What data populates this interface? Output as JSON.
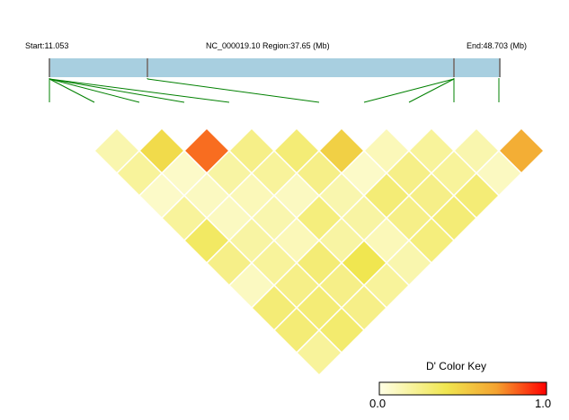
{
  "header": {
    "start_label": "Start:11.053",
    "region_label": "NC_000019.10 Region:37.65 (Mb)",
    "end_label": "End:48.703 (Mb)"
  },
  "region": {
    "start_mb": 11.053,
    "end_mb": 48.703
  },
  "colors": {
    "track_fill": "#a8cfe0",
    "marker_line": "#008000",
    "cell_border": "#ffffff",
    "scale": [
      "#ffffe6",
      "#f0e650",
      "#f4a330",
      "#ff0000"
    ]
  },
  "ld_matrix": {
    "n_snps": 11,
    "d_prime": [
      [
        0.15,
        0.45,
        0.8,
        0.25,
        0.3,
        0.5,
        0.12,
        0.2,
        0.15,
        0.65
      ],
      [
        0.2,
        0.08,
        0.18,
        0.2,
        0.25,
        0.08,
        0.25,
        0.2,
        0.1
      ],
      [
        0.08,
        0.1,
        0.12,
        0.1,
        0.15,
        0.3,
        0.25,
        0.3
      ],
      [
        0.2,
        0.1,
        0.15,
        0.28,
        0.18,
        0.25,
        0.3
      ],
      [
        0.35,
        0.18,
        0.12,
        0.18,
        0.12,
        0.28
      ],
      [
        0.25,
        0.2,
        0.3,
        0.4,
        0.15
      ],
      [
        0.1,
        0.25,
        0.25,
        0.2
      ],
      [
        0.3,
        0.3,
        0.25
      ],
      [
        0.3,
        0.32
      ],
      [
        0.2
      ]
    ]
  },
  "color_key": {
    "title": "D' Color Key",
    "min_label": "0.0",
    "max_label": "1.0"
  }
}
